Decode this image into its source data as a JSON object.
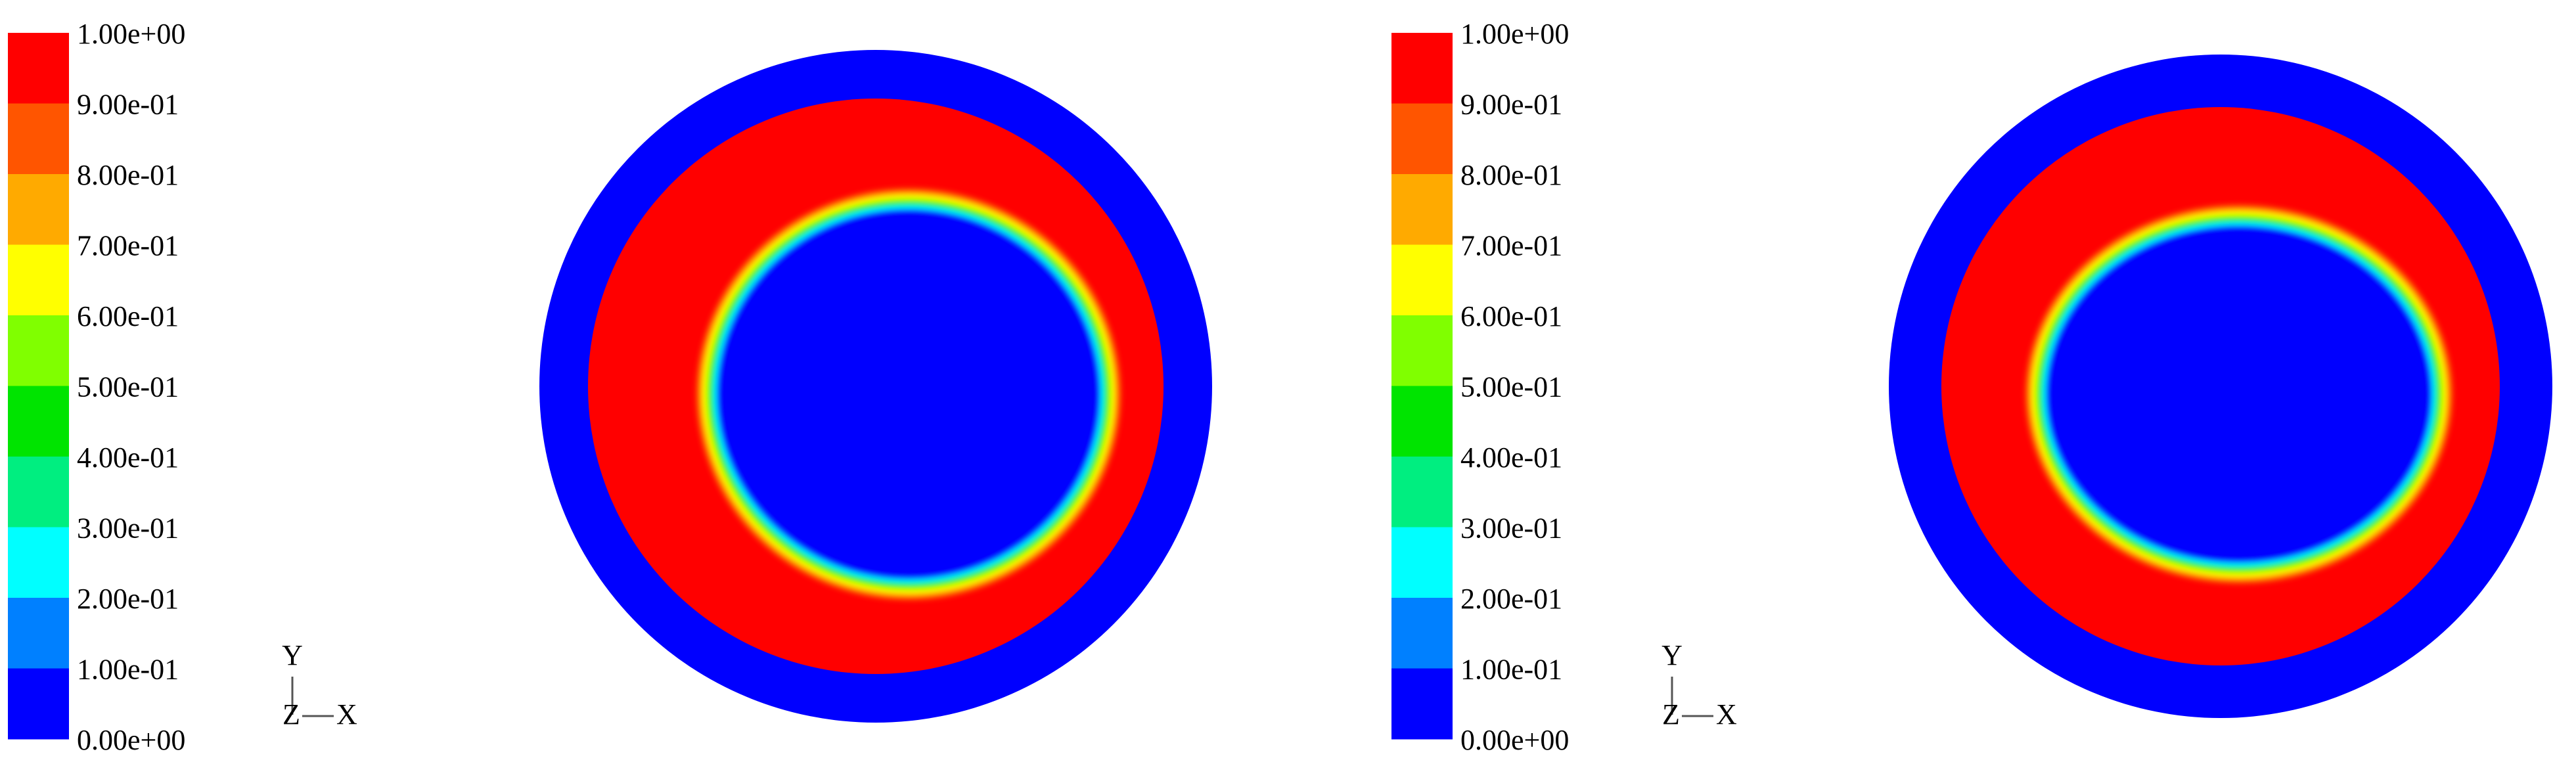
{
  "panels": [
    {
      "legend": {
        "labels": [
          "1.00e+00",
          "9.00e-01",
          "8.00e-01",
          "7.00e-01",
          "6.00e-01",
          "5.00e-01",
          "4.00e-01",
          "3.00e-01",
          "2.00e-01",
          "1.00e-01",
          "0.00e+00"
        ],
        "colors": [
          "#ff0000",
          "#ff5500",
          "#ffaa00",
          "#ffff00",
          "#80ff00",
          "#00e400",
          "#00ee80",
          "#00ffff",
          "#0080ff",
          "#0000ff"
        ]
      },
      "axis_labels": {
        "y": "Y",
        "z": "Z",
        "x": "X"
      }
    },
    {
      "legend": {
        "labels": [
          "1.00e+00",
          "9.00e-01",
          "8.00e-01",
          "7.00e-01",
          "6.00e-01",
          "5.00e-01",
          "4.00e-01",
          "3.00e-01",
          "2.00e-01",
          "1.00e-01",
          "0.00e+00"
        ],
        "colors": [
          "#ff0000",
          "#ff5500",
          "#ffaa00",
          "#ffff00",
          "#80ff00",
          "#00e400",
          "#00ee80",
          "#00ffff",
          "#0080ff",
          "#0000ff"
        ]
      },
      "axis_labels": {
        "y": "Y",
        "z": "Z",
        "x": "X"
      }
    }
  ]
}
